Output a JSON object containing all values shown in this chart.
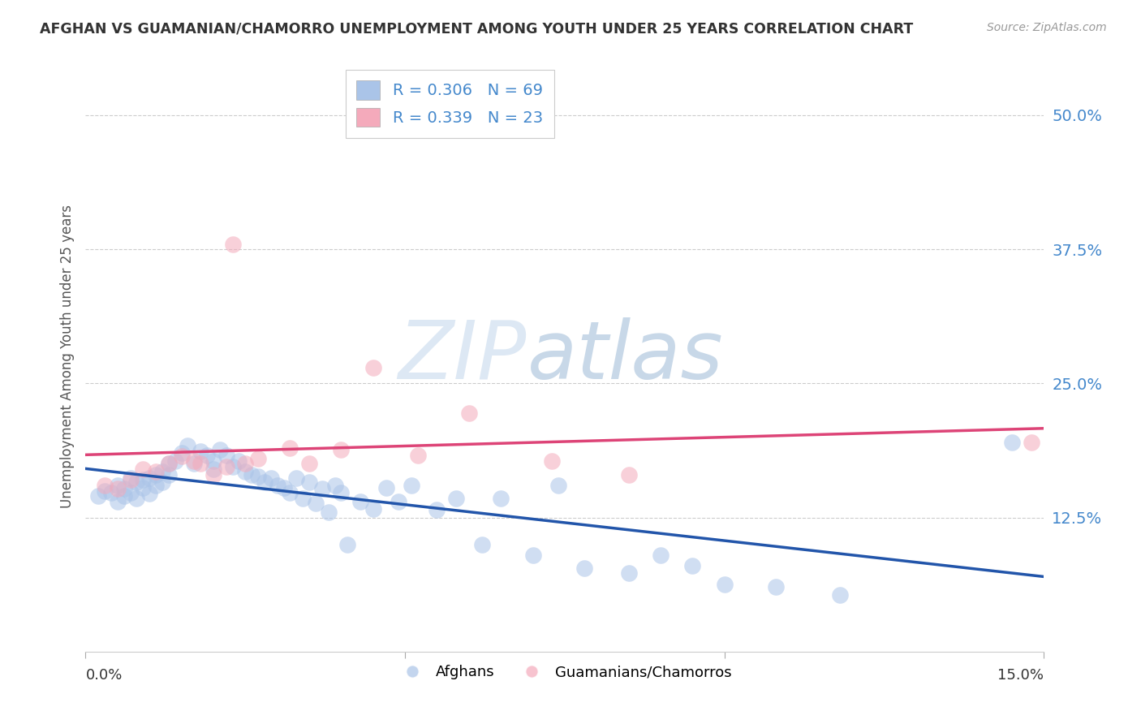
{
  "title": "AFGHAN VS GUAMANIAN/CHAMORRO UNEMPLOYMENT AMONG YOUTH UNDER 25 YEARS CORRELATION CHART",
  "source": "Source: ZipAtlas.com",
  "ylabel": "Unemployment Among Youth under 25 years",
  "xlim": [
    0.0,
    0.15
  ],
  "ylim": [
    0.0,
    0.55
  ],
  "yticks": [
    0.125,
    0.25,
    0.375,
    0.5
  ],
  "ytick_labels": [
    "12.5%",
    "25.0%",
    "37.5%",
    "50.0%"
  ],
  "legend_text_1": "R = 0.306   N = 69",
  "legend_text_2": "R = 0.339   N = 23",
  "legend_label_blue": "Afghans",
  "legend_label_pink": "Guamanians/Chamorros",
  "blue_color": "#aac4e8",
  "pink_color": "#f4aabb",
  "line_blue": "#2255aa",
  "line_pink": "#dd4477",
  "watermark_zip": "ZIP",
  "watermark_atlas": "atlas",
  "background_color": "#ffffff",
  "blue_x": [
    0.002,
    0.003,
    0.004,
    0.005,
    0.005,
    0.006,
    0.006,
    0.007,
    0.007,
    0.008,
    0.008,
    0.009,
    0.009,
    0.01,
    0.01,
    0.011,
    0.011,
    0.012,
    0.012,
    0.013,
    0.013,
    0.014,
    0.015,
    0.016,
    0.017,
    0.018,
    0.019,
    0.02,
    0.02,
    0.021,
    0.022,
    0.023,
    0.024,
    0.025,
    0.026,
    0.027,
    0.028,
    0.029,
    0.03,
    0.031,
    0.032,
    0.033,
    0.034,
    0.035,
    0.036,
    0.037,
    0.038,
    0.039,
    0.04,
    0.041,
    0.043,
    0.045,
    0.047,
    0.049,
    0.051,
    0.055,
    0.058,
    0.062,
    0.065,
    0.07,
    0.074,
    0.078,
    0.085,
    0.09,
    0.095,
    0.1,
    0.108,
    0.118,
    0.145
  ],
  "blue_y": [
    0.145,
    0.15,
    0.148,
    0.155,
    0.14,
    0.152,
    0.145,
    0.162,
    0.148,
    0.158,
    0.143,
    0.16,
    0.153,
    0.162,
    0.147,
    0.165,
    0.155,
    0.168,
    0.158,
    0.165,
    0.175,
    0.178,
    0.185,
    0.192,
    0.175,
    0.187,
    0.183,
    0.178,
    0.17,
    0.188,
    0.183,
    0.172,
    0.178,
    0.168,
    0.165,
    0.163,
    0.158,
    0.162,
    0.155,
    0.153,
    0.148,
    0.162,
    0.143,
    0.158,
    0.138,
    0.152,
    0.13,
    0.155,
    0.148,
    0.1,
    0.14,
    0.133,
    0.153,
    0.14,
    0.155,
    0.132,
    0.143,
    0.1,
    0.143,
    0.09,
    0.155,
    0.078,
    0.073,
    0.09,
    0.08,
    0.063,
    0.06,
    0.053,
    0.195
  ],
  "pink_x": [
    0.003,
    0.005,
    0.007,
    0.009,
    0.011,
    0.013,
    0.015,
    0.017,
    0.018,
    0.02,
    0.022,
    0.023,
    0.025,
    0.027,
    0.032,
    0.035,
    0.04,
    0.045,
    0.052,
    0.06,
    0.073,
    0.085,
    0.148
  ],
  "pink_y": [
    0.155,
    0.152,
    0.16,
    0.17,
    0.168,
    0.175,
    0.182,
    0.178,
    0.175,
    0.165,
    0.172,
    0.38,
    0.175,
    0.18,
    0.19,
    0.175,
    0.188,
    0.265,
    0.183,
    0.222,
    0.178,
    0.165,
    0.195
  ]
}
